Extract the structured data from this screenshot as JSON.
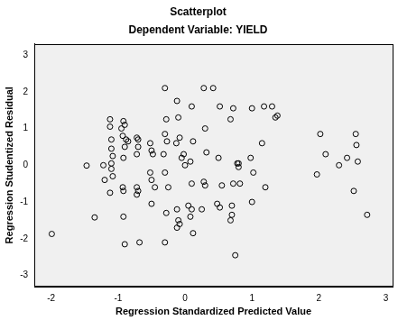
{
  "chart_data": {
    "type": "scatter",
    "title": "Scatterplot",
    "subtitle": "Dependent Variable: YIELD",
    "x_label": "Regression Standardized Predicted Value",
    "y_label": "Regression Studentized Residual",
    "color": "#000000",
    "marker": "circle",
    "grid": false,
    "xlim": [
      -2.25,
      3.1
    ],
    "xticks": [
      -2,
      -1,
      0,
      1,
      2,
      3
    ],
    "ylim": [
      -3.3,
      3.3
    ],
    "yticks": [
      -3,
      -2,
      -1,
      0,
      1,
      2,
      3
    ],
    "x": [
      -1.99,
      -1.47,
      -1.35,
      -1.22,
      -1.2,
      -1.12,
      -1.12,
      -1.1,
      -1.1,
      -1.08,
      -1.1,
      -1.1,
      -1.08,
      -1.12,
      -0.92,
      -0.9,
      -0.95,
      -0.93,
      -0.88,
      -0.85,
      -0.9,
      -0.92,
      -0.93,
      -0.92,
      -0.92,
      -0.9,
      -0.72,
      -0.7,
      -0.7,
      -0.72,
      -0.72,
      -0.7,
      -0.72,
      -0.68,
      -0.52,
      -0.5,
      -0.48,
      -0.52,
      -0.5,
      -0.5,
      -0.45,
      -0.3,
      -0.28,
      -0.3,
      -0.27,
      -0.32,
      -0.3,
      -0.25,
      -0.28,
      -0.3,
      -0.12,
      -0.1,
      -0.08,
      -0.13,
      -0.05,
      -0.02,
      0.0,
      -0.12,
      -0.1,
      -0.12,
      -0.08,
      0.1,
      0.12,
      0.08,
      0.1,
      0.05,
      0.08,
      0.12,
      0.1,
      0.28,
      0.3,
      0.32,
      0.28,
      0.3,
      0.25,
      0.42,
      0.52,
      0.5,
      0.48,
      0.52,
      0.55,
      0.68,
      0.72,
      0.7,
      0.7,
      0.68,
      0.75,
      0.72,
      0.78,
      0.8,
      0.82,
      0.8,
      1.0,
      0.98,
      1.02,
      1.0,
      1.18,
      1.15,
      1.2,
      1.3,
      1.35,
      1.38,
      1.97,
      2.02,
      2.1,
      2.3,
      2.42,
      2.55,
      2.56,
      2.58,
      2.52,
      2.72
    ],
    "values": [
      -1.87,
      -0.01,
      -1.42,
      0.0,
      -0.4,
      1.25,
      1.05,
      0.7,
      0.45,
      0.25,
      0.05,
      -0.1,
      -0.3,
      -0.75,
      1.2,
      1.1,
      1.0,
      0.8,
      0.7,
      0.65,
      0.5,
      0.2,
      -0.6,
      -0.7,
      -1.4,
      -2.15,
      0.75,
      0.7,
      0.5,
      0.3,
      -0.6,
      -0.7,
      -0.8,
      -2.1,
      0.6,
      0.4,
      0.3,
      -0.2,
      -0.4,
      -1.05,
      -0.6,
      2.1,
      1.25,
      0.85,
      0.65,
      0.3,
      -0.2,
      -0.6,
      -1.3,
      -2.1,
      1.75,
      1.3,
      0.75,
      0.6,
      0.2,
      0.3,
      0.0,
      -1.2,
      -1.5,
      -1.7,
      -1.6,
      1.6,
      0.65,
      0.1,
      -0.5,
      -1.1,
      -1.4,
      -1.85,
      -1.2,
      2.1,
      1.0,
      0.35,
      -0.45,
      -0.55,
      -1.2,
      2.1,
      1.6,
      0.2,
      -1.05,
      -1.15,
      -0.55,
      1.25,
      1.55,
      -1.1,
      -1.35,
      -1.5,
      -2.45,
      -0.5,
      0.05,
      0.05,
      -0.5,
      -0.05,
      1.55,
      0.2,
      -0.2,
      -1.0,
      1.6,
      0.6,
      -0.6,
      1.6,
      1.3,
      1.35,
      -0.25,
      0.85,
      0.3,
      0.0,
      0.2,
      0.85,
      0.55,
      0.1,
      -0.7,
      -1.35
    ]
  }
}
